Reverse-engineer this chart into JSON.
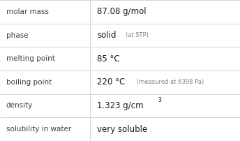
{
  "rows": [
    {
      "label": "molar mass",
      "value_main": "87.08 g/mol",
      "value_note": "",
      "has_superscript": false,
      "superscript_base": "",
      "superscript_exp": ""
    },
    {
      "label": "phase",
      "value_main": "solid",
      "value_note": "(at STP)",
      "has_superscript": false,
      "superscript_base": "",
      "superscript_exp": ""
    },
    {
      "label": "melting point",
      "value_main": "85 °C",
      "value_note": "",
      "has_superscript": false,
      "superscript_base": "",
      "superscript_exp": ""
    },
    {
      "label": "boiling point",
      "value_main": "220 °C",
      "value_note": "(measured at 6398 Pa)",
      "has_superscript": false,
      "superscript_base": "",
      "superscript_exp": ""
    },
    {
      "label": "density",
      "value_main": "1.323 g/cm",
      "value_note": "",
      "has_superscript": true,
      "superscript_base": "1.323 g/cm",
      "superscript_exp": "3"
    },
    {
      "label": "solubility in water",
      "value_main": "very soluble",
      "value_note": "",
      "has_superscript": false,
      "superscript_base": "",
      "superscript_exp": ""
    }
  ],
  "col_split": 0.375,
  "bg_color": "#ffffff",
  "line_color": "#cccccc",
  "label_color": "#404040",
  "value_color": "#1a1a1a",
  "note_color": "#808080",
  "label_fontsize": 7.5,
  "value_fontsize": 8.5,
  "note_fontsize": 6.0,
  "super_fontsize": 5.5
}
